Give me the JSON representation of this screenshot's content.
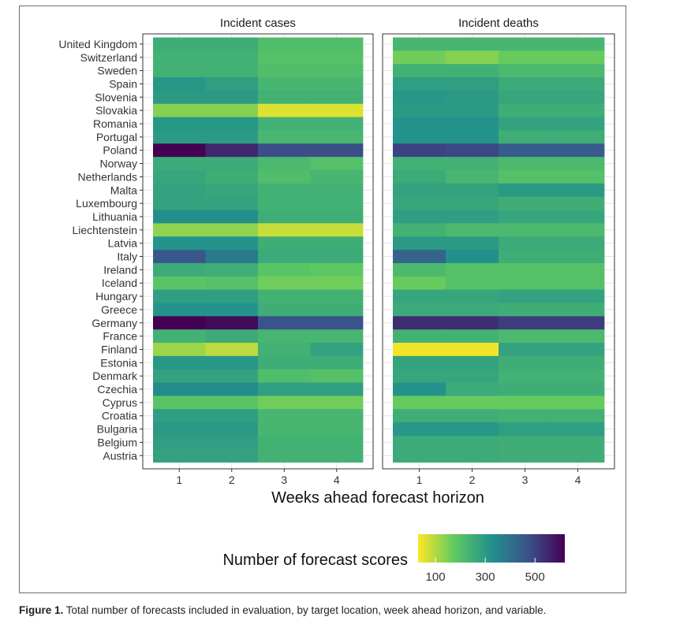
{
  "chart_data": {
    "type": "heatmap",
    "facets": [
      "Incident cases",
      "Incident deaths"
    ],
    "x": [
      1,
      2,
      3,
      4
    ],
    "xlabel": "Weeks ahead forecast horizon",
    "ylabel": "",
    "y": [
      "United Kingdom",
      "Switzerland",
      "Sweden",
      "Spain",
      "Slovenia",
      "Slovakia",
      "Romania",
      "Portugal",
      "Poland",
      "Norway",
      "Netherlands",
      "Malta",
      "Luxembourg",
      "Lithuania",
      "Liechtenstein",
      "Latvia",
      "Italy",
      "Ireland",
      "Iceland",
      "Hungary",
      "Greece",
      "Germany",
      "France",
      "Finland",
      "Estonia",
      "Denmark",
      "Czechia",
      "Cyprus",
      "Croatia",
      "Bulgaria",
      "Belgium",
      "Austria"
    ],
    "values": {
      "Incident cases": [
        [
          250,
          250,
          210,
          210
        ],
        [
          240,
          240,
          200,
          200
        ],
        [
          240,
          240,
          210,
          210
        ],
        [
          310,
          290,
          230,
          230
        ],
        [
          300,
          300,
          240,
          240
        ],
        [
          140,
          140,
          60,
          60
        ],
        [
          310,
          310,
          240,
          240
        ],
        [
          300,
          300,
          230,
          230
        ],
        [
          620,
          550,
          480,
          480
        ],
        [
          260,
          260,
          220,
          200
        ],
        [
          270,
          250,
          210,
          230
        ],
        [
          280,
          270,
          240,
          240
        ],
        [
          280,
          280,
          240,
          240
        ],
        [
          330,
          330,
          250,
          250
        ],
        [
          130,
          130,
          80,
          80
        ],
        [
          320,
          320,
          250,
          250
        ],
        [
          460,
          380,
          260,
          260
        ],
        [
          260,
          250,
          190,
          180
        ],
        [
          190,
          200,
          160,
          160
        ],
        [
          290,
          290,
          240,
          240
        ],
        [
          320,
          320,
          250,
          250
        ],
        [
          620,
          600,
          470,
          470
        ],
        [
          240,
          260,
          230,
          230
        ],
        [
          120,
          90,
          240,
          280
        ],
        [
          310,
          310,
          250,
          250
        ],
        [
          280,
          280,
          210,
          200
        ],
        [
          340,
          340,
          290,
          290
        ],
        [
          190,
          190,
          160,
          160
        ],
        [
          290,
          290,
          230,
          230
        ],
        [
          300,
          300,
          230,
          230
        ],
        [
          290,
          290,
          240,
          240
        ],
        [
          280,
          280,
          240,
          240
        ]
      ],
      "Incident deaths": [
        [
          230,
          230,
          230,
          230
        ],
        [
          160,
          140,
          170,
          170
        ],
        [
          240,
          240,
          220,
          220
        ],
        [
          290,
          290,
          260,
          260
        ],
        [
          310,
          300,
          270,
          270
        ],
        [
          300,
          300,
          250,
          250
        ],
        [
          320,
          320,
          280,
          280
        ],
        [
          320,
          320,
          250,
          250
        ],
        [
          500,
          490,
          450,
          450
        ],
        [
          240,
          240,
          220,
          220
        ],
        [
          260,
          230,
          200,
          200
        ],
        [
          280,
          280,
          300,
          300
        ],
        [
          270,
          270,
          250,
          250
        ],
        [
          290,
          290,
          270,
          270
        ],
        [
          240,
          220,
          220,
          220
        ],
        [
          300,
          300,
          260,
          260
        ],
        [
          430,
          330,
          250,
          250
        ],
        [
          220,
          200,
          200,
          200
        ],
        [
          170,
          200,
          200,
          200
        ],
        [
          270,
          270,
          280,
          280
        ],
        [
          260,
          260,
          250,
          250
        ],
        [
          540,
          540,
          510,
          510
        ],
        [
          240,
          240,
          220,
          220
        ],
        [
          40,
          40,
          280,
          280
        ],
        [
          280,
          280,
          250,
          250
        ],
        [
          270,
          270,
          240,
          240
        ],
        [
          320,
          260,
          250,
          250
        ],
        [
          170,
          170,
          170,
          170
        ],
        [
          250,
          250,
          240,
          240
        ],
        [
          310,
          310,
          290,
          290
        ],
        [
          260,
          260,
          250,
          250
        ],
        [
          260,
          260,
          250,
          250
        ]
      ]
    },
    "legend": {
      "title": "Number of forecast scores",
      "ticks": [
        100,
        300,
        500
      ],
      "range": [
        30,
        620
      ],
      "placement": "bottom"
    },
    "colormap": [
      "#fde725",
      "#5ec962",
      "#21918c",
      "#3b528b",
      "#440154"
    ],
    "grid": true
  },
  "caption": {
    "label": "Figure 1.",
    "text": " Total number of forecasts included in evaluation, by target location, week ahead horizon, and variable."
  }
}
